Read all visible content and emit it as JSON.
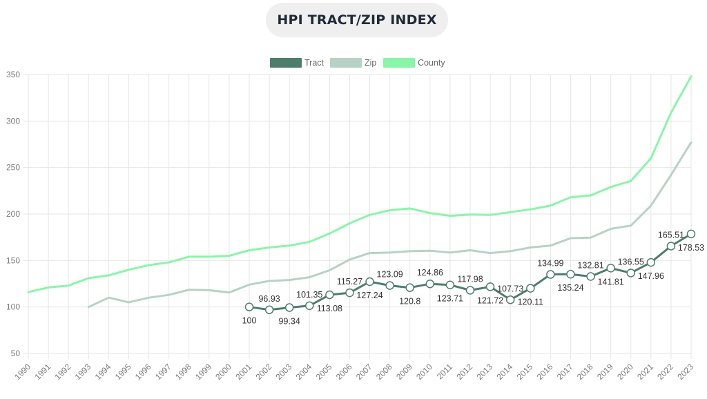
{
  "title": "HPI TRACT/ZIP INDEX",
  "colors": {
    "tract": "#4e7d6b",
    "zip": "#b7d2c4",
    "county": "#8af5a9",
    "grid": "#e6e6e6",
    "tick": "#7a7a7a"
  },
  "chart_data": {
    "type": "line",
    "title": "HPI TRACT/ZIP INDEX",
    "xlabel": "",
    "ylabel": "",
    "ylim": [
      50,
      350
    ],
    "yticks": [
      50,
      100,
      150,
      200,
      250,
      300,
      350
    ],
    "grid": true,
    "legend": "top-center",
    "x": [
      "1990",
      "1991",
      "1992",
      "1993",
      "1994",
      "1995",
      "1996",
      "1997",
      "1998",
      "1999",
      "2000",
      "2001",
      "2002",
      "2003",
      "2004",
      "2005",
      "2006",
      "2007",
      "2008",
      "2009",
      "2010",
      "2011",
      "2012",
      "2013",
      "2014",
      "2015",
      "2016",
      "2017",
      "2018",
      "2019",
      "2020",
      "2021",
      "2022",
      "2023"
    ],
    "series": [
      {
        "name": "Tract",
        "color": "#4e7d6b",
        "markers": true,
        "labels": true,
        "values": [
          null,
          null,
          null,
          null,
          null,
          null,
          null,
          null,
          null,
          null,
          null,
          100,
          96.93,
          99.34,
          101.35,
          113.08,
          115.27,
          127.24,
          123.09,
          120.8,
          124.86,
          123.71,
          117.98,
          121.72,
          107.73,
          120.11,
          134.99,
          135.24,
          132.81,
          141.81,
          136.55,
          147.96,
          165.51,
          178.53
        ],
        "label_pos": [
          null,
          null,
          null,
          null,
          null,
          null,
          null,
          null,
          null,
          null,
          null,
          "below",
          "above",
          "below",
          "above",
          "below",
          "above",
          "below",
          "above",
          "below",
          "above",
          "below",
          "above",
          "below",
          "above",
          "below",
          "above",
          "below",
          "above",
          "below",
          "above",
          "below",
          "above",
          "below"
        ]
      },
      {
        "name": "Zip",
        "color": "#b7d2c4",
        "markers": false,
        "labels": false,
        "values": [
          null,
          null,
          null,
          100,
          110,
          105,
          110,
          113,
          118.5,
          118,
          115.5,
          124,
          128,
          129,
          132,
          139.5,
          151,
          158,
          158.5,
          160,
          160.5,
          158.5,
          161,
          158,
          160,
          164,
          166,
          174,
          174.5,
          184,
          187.5,
          209,
          242,
          277
        ]
      },
      {
        "name": "County",
        "color": "#8af5a9",
        "markers": false,
        "labels": false,
        "values": [
          116,
          121,
          123,
          131,
          134,
          140,
          145,
          148,
          154,
          154,
          155,
          161,
          164,
          166,
          170,
          179,
          190,
          199,
          204,
          206,
          201,
          198,
          199.5,
          199,
          202,
          205,
          209,
          218,
          220,
          229,
          235.5,
          260,
          309,
          348
        ]
      }
    ]
  }
}
